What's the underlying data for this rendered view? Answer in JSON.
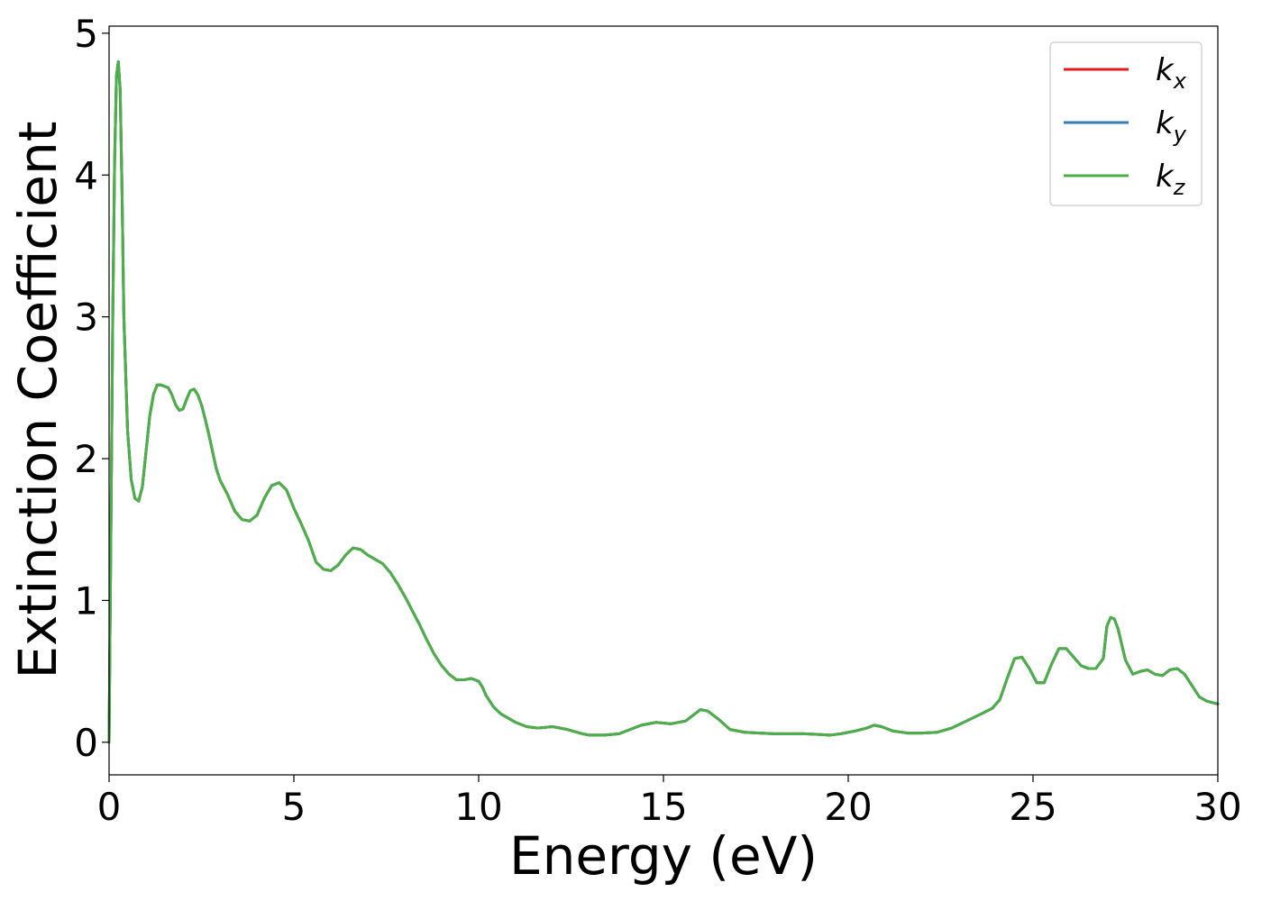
{
  "chart_data": {
    "type": "line",
    "title": "",
    "xlabel": "Energy (eV)",
    "ylabel": "Extinction Coefficient",
    "xlim": [
      0,
      30
    ],
    "ylim": [
      -0.23,
      5.05
    ],
    "xticks": [
      0,
      5,
      10,
      15,
      20,
      25,
      30
    ],
    "xtick_labels": [
      "0",
      "5",
      "10",
      "15",
      "20",
      "25",
      "30"
    ],
    "yticks": [
      0,
      1,
      2,
      3,
      4,
      5
    ],
    "ytick_labels": [
      "0",
      "1",
      "2",
      "3",
      "4",
      "5"
    ],
    "grid": false,
    "legend_position": "top-right",
    "x": [
      0,
      0.05,
      0.1,
      0.15,
      0.2,
      0.25,
      0.3,
      0.35,
      0.4,
      0.5,
      0.6,
      0.7,
      0.8,
      0.9,
      1.0,
      1.1,
      1.2,
      1.3,
      1.4,
      1.5,
      1.6,
      1.7,
      1.8,
      1.9,
      2.0,
      2.1,
      2.2,
      2.3,
      2.4,
      2.5,
      2.6,
      2.7,
      2.8,
      2.9,
      3.0,
      3.1,
      3.2,
      3.4,
      3.6,
      3.8,
      4.0,
      4.2,
      4.4,
      4.6,
      4.8,
      5.0,
      5.2,
      5.4,
      5.6,
      5.8,
      6.0,
      6.2,
      6.4,
      6.6,
      6.8,
      7.0,
      7.2,
      7.4,
      7.6,
      7.8,
      8.0,
      8.2,
      8.4,
      8.6,
      8.8,
      9.0,
      9.2,
      9.4,
      9.6,
      9.8,
      10.0,
      10.1,
      10.2,
      10.4,
      10.6,
      10.8,
      11.0,
      11.3,
      11.6,
      12.0,
      12.4,
      12.8,
      13.0,
      13.4,
      13.8,
      14.1,
      14.4,
      14.8,
      15.2,
      15.6,
      15.8,
      16.0,
      16.2,
      16.5,
      16.8,
      17.2,
      17.6,
      18.0,
      18.4,
      18.8,
      19.2,
      19.5,
      19.8,
      20.2,
      20.5,
      20.7,
      20.9,
      21.2,
      21.6,
      22.0,
      22.4,
      22.8,
      23.2,
      23.6,
      23.9,
      24.1,
      24.3,
      24.5,
      24.7,
      24.9,
      25.1,
      25.3,
      25.5,
      25.7,
      25.9,
      26.1,
      26.3,
      26.5,
      26.7,
      26.9,
      27.0,
      27.1,
      27.2,
      27.3,
      27.5,
      27.7,
      27.9,
      28.1,
      28.3,
      28.5,
      28.7,
      28.9,
      29.1,
      29.3,
      29.5,
      29.7,
      30.0
    ],
    "series": [
      {
        "name": "k_x",
        "legend_label": "k",
        "legend_sub": "x",
        "color": "#e41a1c",
        "values": [
          0,
          1.5,
          3.0,
          4.1,
          4.7,
          4.8,
          4.6,
          3.9,
          3.0,
          2.2,
          1.85,
          1.72,
          1.7,
          1.8,
          2.05,
          2.3,
          2.45,
          2.52,
          2.52,
          2.51,
          2.5,
          2.45,
          2.38,
          2.34,
          2.35,
          2.42,
          2.48,
          2.49,
          2.45,
          2.38,
          2.28,
          2.17,
          2.05,
          1.93,
          1.85,
          1.8,
          1.75,
          1.63,
          1.57,
          1.56,
          1.6,
          1.72,
          1.81,
          1.83,
          1.78,
          1.65,
          1.54,
          1.42,
          1.27,
          1.22,
          1.21,
          1.25,
          1.32,
          1.37,
          1.36,
          1.32,
          1.29,
          1.26,
          1.2,
          1.12,
          1.03,
          0.93,
          0.83,
          0.72,
          0.62,
          0.54,
          0.48,
          0.44,
          0.44,
          0.45,
          0.43,
          0.39,
          0.33,
          0.25,
          0.2,
          0.17,
          0.14,
          0.11,
          0.1,
          0.11,
          0.09,
          0.06,
          0.05,
          0.05,
          0.06,
          0.09,
          0.12,
          0.14,
          0.13,
          0.15,
          0.19,
          0.23,
          0.22,
          0.16,
          0.09,
          0.07,
          0.065,
          0.06,
          0.06,
          0.06,
          0.055,
          0.05,
          0.06,
          0.08,
          0.1,
          0.12,
          0.11,
          0.08,
          0.065,
          0.065,
          0.07,
          0.1,
          0.15,
          0.2,
          0.24,
          0.3,
          0.45,
          0.59,
          0.6,
          0.52,
          0.42,
          0.42,
          0.55,
          0.66,
          0.66,
          0.6,
          0.54,
          0.52,
          0.52,
          0.59,
          0.82,
          0.88,
          0.87,
          0.8,
          0.58,
          0.48,
          0.5,
          0.51,
          0.48,
          0.47,
          0.51,
          0.52,
          0.48,
          0.4,
          0.32,
          0.29,
          0.27
        ]
      },
      {
        "name": "k_y",
        "legend_label": "k",
        "legend_sub": "y",
        "color": "#377eb8",
        "values": [
          0,
          1.5,
          3.0,
          4.1,
          4.7,
          4.8,
          4.6,
          3.9,
          3.0,
          2.2,
          1.85,
          1.72,
          1.7,
          1.8,
          2.05,
          2.3,
          2.45,
          2.52,
          2.52,
          2.51,
          2.5,
          2.45,
          2.38,
          2.34,
          2.35,
          2.42,
          2.48,
          2.49,
          2.45,
          2.38,
          2.28,
          2.17,
          2.05,
          1.93,
          1.85,
          1.8,
          1.75,
          1.63,
          1.57,
          1.56,
          1.6,
          1.72,
          1.81,
          1.83,
          1.78,
          1.65,
          1.54,
          1.42,
          1.27,
          1.22,
          1.21,
          1.25,
          1.32,
          1.37,
          1.36,
          1.32,
          1.29,
          1.26,
          1.2,
          1.12,
          1.03,
          0.93,
          0.83,
          0.72,
          0.62,
          0.54,
          0.48,
          0.44,
          0.44,
          0.45,
          0.43,
          0.39,
          0.33,
          0.25,
          0.2,
          0.17,
          0.14,
          0.11,
          0.1,
          0.11,
          0.09,
          0.06,
          0.05,
          0.05,
          0.06,
          0.09,
          0.12,
          0.14,
          0.13,
          0.15,
          0.19,
          0.23,
          0.22,
          0.16,
          0.09,
          0.07,
          0.065,
          0.06,
          0.06,
          0.06,
          0.055,
          0.05,
          0.06,
          0.08,
          0.1,
          0.12,
          0.11,
          0.08,
          0.065,
          0.065,
          0.07,
          0.1,
          0.15,
          0.2,
          0.24,
          0.3,
          0.45,
          0.59,
          0.6,
          0.52,
          0.42,
          0.42,
          0.55,
          0.66,
          0.66,
          0.6,
          0.54,
          0.52,
          0.52,
          0.59,
          0.82,
          0.88,
          0.87,
          0.8,
          0.58,
          0.48,
          0.5,
          0.51,
          0.48,
          0.47,
          0.51,
          0.52,
          0.48,
          0.4,
          0.32,
          0.29,
          0.27
        ]
      },
      {
        "name": "k_z",
        "legend_label": "k",
        "legend_sub": "z",
        "color": "#4daf4a",
        "values": [
          0,
          1.5,
          3.0,
          4.1,
          4.7,
          4.8,
          4.6,
          3.9,
          3.0,
          2.2,
          1.85,
          1.72,
          1.7,
          1.8,
          2.05,
          2.3,
          2.45,
          2.52,
          2.52,
          2.51,
          2.5,
          2.45,
          2.38,
          2.34,
          2.35,
          2.42,
          2.48,
          2.49,
          2.45,
          2.38,
          2.28,
          2.17,
          2.05,
          1.93,
          1.85,
          1.8,
          1.75,
          1.63,
          1.57,
          1.56,
          1.6,
          1.72,
          1.81,
          1.83,
          1.78,
          1.65,
          1.54,
          1.42,
          1.27,
          1.22,
          1.21,
          1.25,
          1.32,
          1.37,
          1.36,
          1.32,
          1.29,
          1.26,
          1.2,
          1.12,
          1.03,
          0.93,
          0.83,
          0.72,
          0.62,
          0.54,
          0.48,
          0.44,
          0.44,
          0.45,
          0.43,
          0.39,
          0.33,
          0.25,
          0.2,
          0.17,
          0.14,
          0.11,
          0.1,
          0.11,
          0.09,
          0.06,
          0.05,
          0.05,
          0.06,
          0.09,
          0.12,
          0.14,
          0.13,
          0.15,
          0.19,
          0.23,
          0.22,
          0.16,
          0.09,
          0.07,
          0.065,
          0.06,
          0.06,
          0.06,
          0.055,
          0.05,
          0.06,
          0.08,
          0.1,
          0.12,
          0.11,
          0.08,
          0.065,
          0.065,
          0.07,
          0.1,
          0.15,
          0.2,
          0.24,
          0.3,
          0.45,
          0.59,
          0.6,
          0.52,
          0.42,
          0.42,
          0.55,
          0.66,
          0.66,
          0.6,
          0.54,
          0.52,
          0.52,
          0.59,
          0.82,
          0.88,
          0.87,
          0.8,
          0.58,
          0.48,
          0.5,
          0.51,
          0.48,
          0.47,
          0.51,
          0.52,
          0.48,
          0.4,
          0.32,
          0.29,
          0.27
        ]
      }
    ]
  }
}
